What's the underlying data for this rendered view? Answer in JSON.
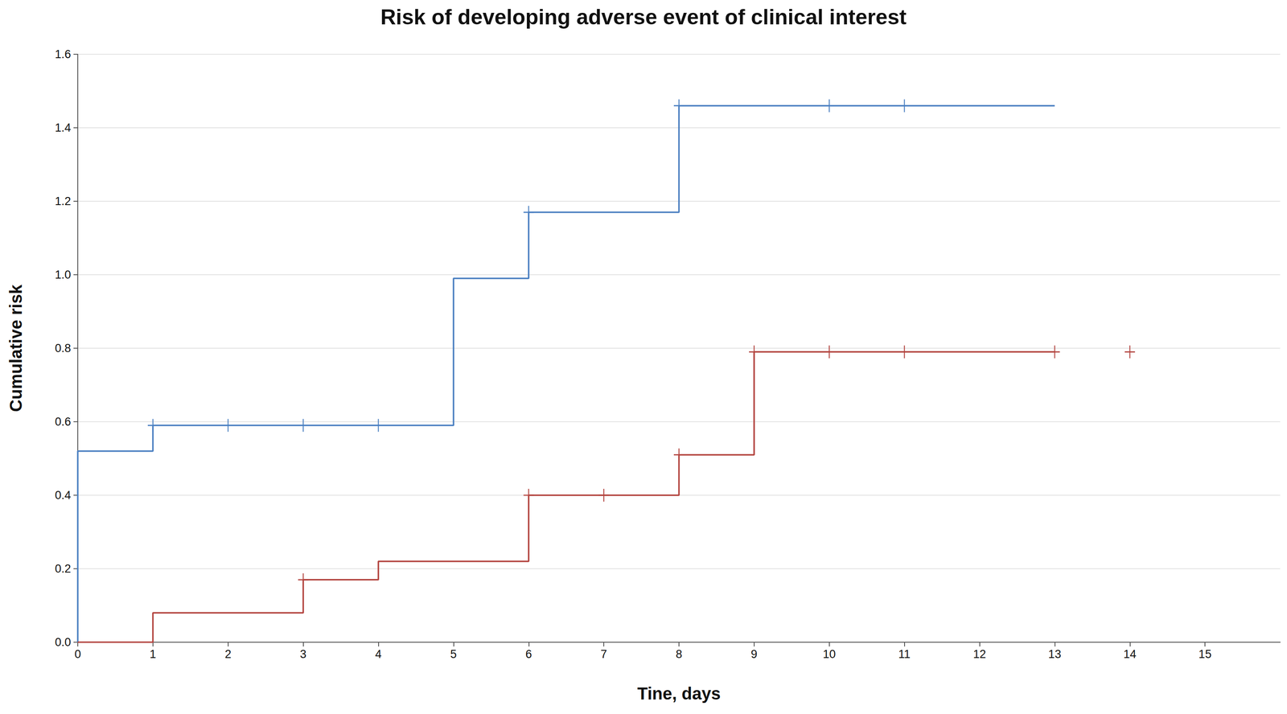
{
  "chart_data": {
    "type": "step",
    "title": "Risk of developing adverse event of clinical interest",
    "xlabel": "Tine, days",
    "ylabel": "Cumulative risk",
    "xlim": [
      0,
      16
    ],
    "xticks": [
      0,
      1,
      2,
      3,
      4,
      5,
      6,
      7,
      8,
      9,
      10,
      11,
      12,
      13,
      14,
      15
    ],
    "ylim": [
      0,
      1.6
    ],
    "yticks": [
      {
        "value": 0,
        "label": "0.0"
      },
      {
        "value": 0.2,
        "label": "0.2"
      },
      {
        "value": 0.4,
        "label": "0.4"
      },
      {
        "value": 0.6,
        "label": "0.6"
      },
      {
        "value": 0.8,
        "label": "0.8"
      },
      {
        "value": 1.0,
        "label": "1.0"
      },
      {
        "value": 1.2,
        "label": "1.2"
      },
      {
        "value": 1.4,
        "label": "1.4"
      },
      {
        "value": 1.6,
        "label": "1.6"
      }
    ],
    "grid": true,
    "series": [
      {
        "color": "#4a7fc1",
        "marker": "plus",
        "x": [
          0,
          0,
          1,
          5,
          6,
          8,
          13
        ],
        "values": [
          0,
          0.52,
          0.59,
          0.99,
          1.17,
          1.46,
          1.46
        ],
        "censored": {
          "x": [
            1,
            2,
            3,
            4,
            6,
            8,
            10,
            11
          ],
          "values": [
            0.59,
            0.59,
            0.59,
            0.59,
            1.17,
            1.46,
            1.46,
            1.46
          ]
        }
      },
      {
        "color": "#b3443f",
        "marker": "plus",
        "x": [
          0,
          1,
          3,
          4,
          6,
          8,
          9,
          13
        ],
        "values": [
          0,
          0.08,
          0.17,
          0.22,
          0.4,
          0.51,
          0.79,
          0.79
        ],
        "censored": {
          "x": [
            3,
            6,
            7,
            8,
            9,
            10,
            11,
            13,
            14
          ],
          "values": [
            0.17,
            0.4,
            0.4,
            0.51,
            0.79,
            0.79,
            0.79,
            0.79,
            0.79
          ]
        }
      }
    ]
  }
}
